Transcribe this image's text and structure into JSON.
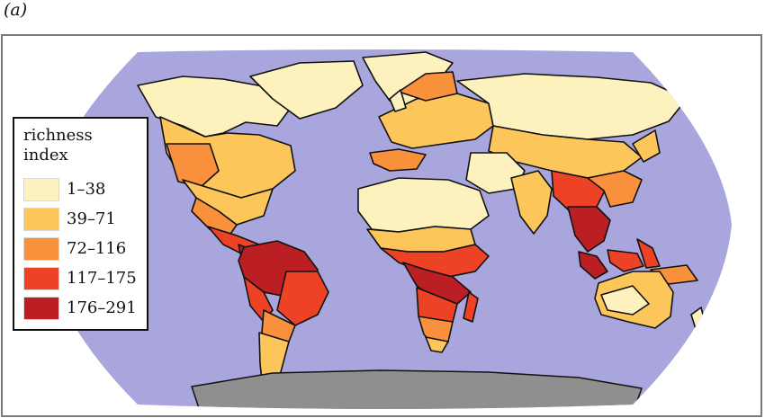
{
  "figure": {
    "panel_label": "(a)"
  },
  "map": {
    "ocean_color": "#a8a6dc",
    "antarctica_color": "#8f8f8f",
    "border_color": "#111111"
  },
  "legend": {
    "title_line1": "richness",
    "title_line2": "index",
    "classes": [
      {
        "label": "1–38",
        "color": "#fdf2bd"
      },
      {
        "label": "39–71",
        "color": "#fdc65a"
      },
      {
        "label": "72–116",
        "color": "#f9913c"
      },
      {
        "label": "117–175",
        "color": "#ee4227"
      },
      {
        "label": "176–291",
        "color": "#bb1e23"
      }
    ]
  }
}
